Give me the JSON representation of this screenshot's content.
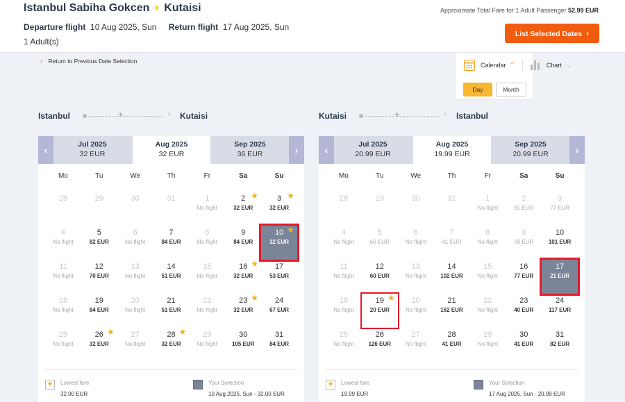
{
  "header": {
    "origin": "Istanbul Sabiha Gokcen",
    "destination": "Kutaisi",
    "fare_label": "Approximate Total Fare for 1 Adult Passenger",
    "fare_value": "52.99 EUR",
    "departure_label": "Departure flight",
    "departure_value": "10 Aug 2025, Sun",
    "return_label": "Return flight",
    "return_value": "17 Aug 2025, Sun",
    "passengers": "1 Adult(s)",
    "list_button": "List Selected Dates"
  },
  "back_link": "Return to Previous Date Selection",
  "view": {
    "calendar_label": "Calendar",
    "chart_label": "Chart",
    "day_label": "Day",
    "month_label": "Month"
  },
  "weekdays": [
    "Mo",
    "Tu",
    "We",
    "Th",
    "Fr",
    "Sa",
    "Su"
  ],
  "outbound": {
    "from": "Istanbul",
    "to": "Kutaisi",
    "months": [
      {
        "name": "Jul 2025",
        "price": "32 EUR"
      },
      {
        "name": "Aug 2025",
        "price": "32 EUR"
      },
      {
        "name": "Sep 2025",
        "price": "36 EUR"
      }
    ],
    "days": [
      {
        "d": "28",
        "p": "",
        "muted": true
      },
      {
        "d": "29",
        "p": "",
        "muted": true
      },
      {
        "d": "30",
        "p": "",
        "muted": true
      },
      {
        "d": "31",
        "p": "",
        "muted": true
      },
      {
        "d": "1",
        "p": "No flight",
        "nof": true
      },
      {
        "d": "2",
        "p": "32 EUR",
        "star": true
      },
      {
        "d": "3",
        "p": "32 EUR",
        "star": true
      },
      {
        "d": "4",
        "p": "No flight",
        "nof": true
      },
      {
        "d": "5",
        "p": "82 EUR"
      },
      {
        "d": "6",
        "p": "No flight",
        "nof": true
      },
      {
        "d": "7",
        "p": "84 EUR"
      },
      {
        "d": "8",
        "p": "No flight",
        "nof": true
      },
      {
        "d": "9",
        "p": "84 EUR"
      },
      {
        "d": "10",
        "p": "32 EUR",
        "star": true,
        "sel": true
      },
      {
        "d": "11",
        "p": "No flight",
        "nof": true
      },
      {
        "d": "12",
        "p": "70 EUR"
      },
      {
        "d": "13",
        "p": "No flight",
        "nof": true
      },
      {
        "d": "14",
        "p": "51 EUR"
      },
      {
        "d": "15",
        "p": "No flight",
        "nof": true
      },
      {
        "d": "16",
        "p": "32 EUR",
        "star": true
      },
      {
        "d": "17",
        "p": "53 EUR"
      },
      {
        "d": "18",
        "p": "No flight",
        "nof": true
      },
      {
        "d": "19",
        "p": "84 EUR"
      },
      {
        "d": "20",
        "p": "No flight",
        "nof": true
      },
      {
        "d": "21",
        "p": "51 EUR"
      },
      {
        "d": "22",
        "p": "No flight",
        "nof": true
      },
      {
        "d": "23",
        "p": "32 EUR",
        "star": true
      },
      {
        "d": "24",
        "p": "67 EUR"
      },
      {
        "d": "25",
        "p": "No flight",
        "nof": true
      },
      {
        "d": "26",
        "p": "32 EUR",
        "star": true
      },
      {
        "d": "27",
        "p": "No flight",
        "nof": true
      },
      {
        "d": "28",
        "p": "32 EUR",
        "star": true
      },
      {
        "d": "29",
        "p": "No flight",
        "nof": true
      },
      {
        "d": "30",
        "p": "105 EUR"
      },
      {
        "d": "31",
        "p": "84 EUR"
      }
    ],
    "legend": {
      "lowest_label": "Lowest fare",
      "lowest_value": "32.00 EUR",
      "selection_label": "Your Selection",
      "selection_value": "10 Aug 2025, Sun - 32.00 EUR"
    }
  },
  "inbound": {
    "from": "Kutaisi",
    "to": "Istanbul",
    "months": [
      {
        "name": "Jul 2025",
        "price": "20.99 EUR"
      },
      {
        "name": "Aug 2025",
        "price": "19.99 EUR"
      },
      {
        "name": "Sep 2025",
        "price": "20.99 EUR"
      }
    ],
    "days": [
      {
        "d": "28",
        "p": "",
        "muted": true
      },
      {
        "d": "29",
        "p": "",
        "muted": true
      },
      {
        "d": "30",
        "p": "",
        "muted": true
      },
      {
        "d": "31",
        "p": "",
        "muted": true
      },
      {
        "d": "1",
        "p": "No flight",
        "nof": true
      },
      {
        "d": "2",
        "p": "81 EUR",
        "muted": true
      },
      {
        "d": "3",
        "p": "77 EUR",
        "muted": true
      },
      {
        "d": "4",
        "p": "No flight",
        "nof": true
      },
      {
        "d": "5",
        "p": "60 EUR",
        "muted": true
      },
      {
        "d": "6",
        "p": "No flight",
        "nof": true
      },
      {
        "d": "7",
        "p": "41 EUR",
        "muted": true
      },
      {
        "d": "8",
        "p": "No flight",
        "nof": true
      },
      {
        "d": "9",
        "p": "59 EUR",
        "muted": true
      },
      {
        "d": "10",
        "p": "101 EUR"
      },
      {
        "d": "11",
        "p": "No flight",
        "nof": true
      },
      {
        "d": "12",
        "p": "60 EUR"
      },
      {
        "d": "13",
        "p": "No flight",
        "nof": true
      },
      {
        "d": "14",
        "p": "102 EUR"
      },
      {
        "d": "15",
        "p": "No flight",
        "nof": true
      },
      {
        "d": "16",
        "p": "77 EUR"
      },
      {
        "d": "17",
        "p": "21 EUR",
        "sel": true
      },
      {
        "d": "18",
        "p": "No flight",
        "nof": true
      },
      {
        "d": "19",
        "p": "20 EUR",
        "star": true,
        "outlined": true
      },
      {
        "d": "20",
        "p": "No flight",
        "nof": true
      },
      {
        "d": "21",
        "p": "162 EUR"
      },
      {
        "d": "22",
        "p": "No flight",
        "nof": true
      },
      {
        "d": "23",
        "p": "40 EUR"
      },
      {
        "d": "24",
        "p": "117 EUR"
      },
      {
        "d": "25",
        "p": "No flight",
        "nof": true
      },
      {
        "d": "26",
        "p": "126 EUR"
      },
      {
        "d": "27",
        "p": "No flight",
        "nof": true
      },
      {
        "d": "28",
        "p": "41 EUR"
      },
      {
        "d": "29",
        "p": "No flight",
        "nof": true
      },
      {
        "d": "30",
        "p": "41 EUR"
      },
      {
        "d": "31",
        "p": "82 EUR"
      }
    ],
    "legend": {
      "lowest_label": "Lowest fare",
      "lowest_value": "19.99 EUR",
      "selection_label": "Your Selection",
      "selection_value": "17 Aug 2025, Sun - 20.99 EUR"
    }
  }
}
